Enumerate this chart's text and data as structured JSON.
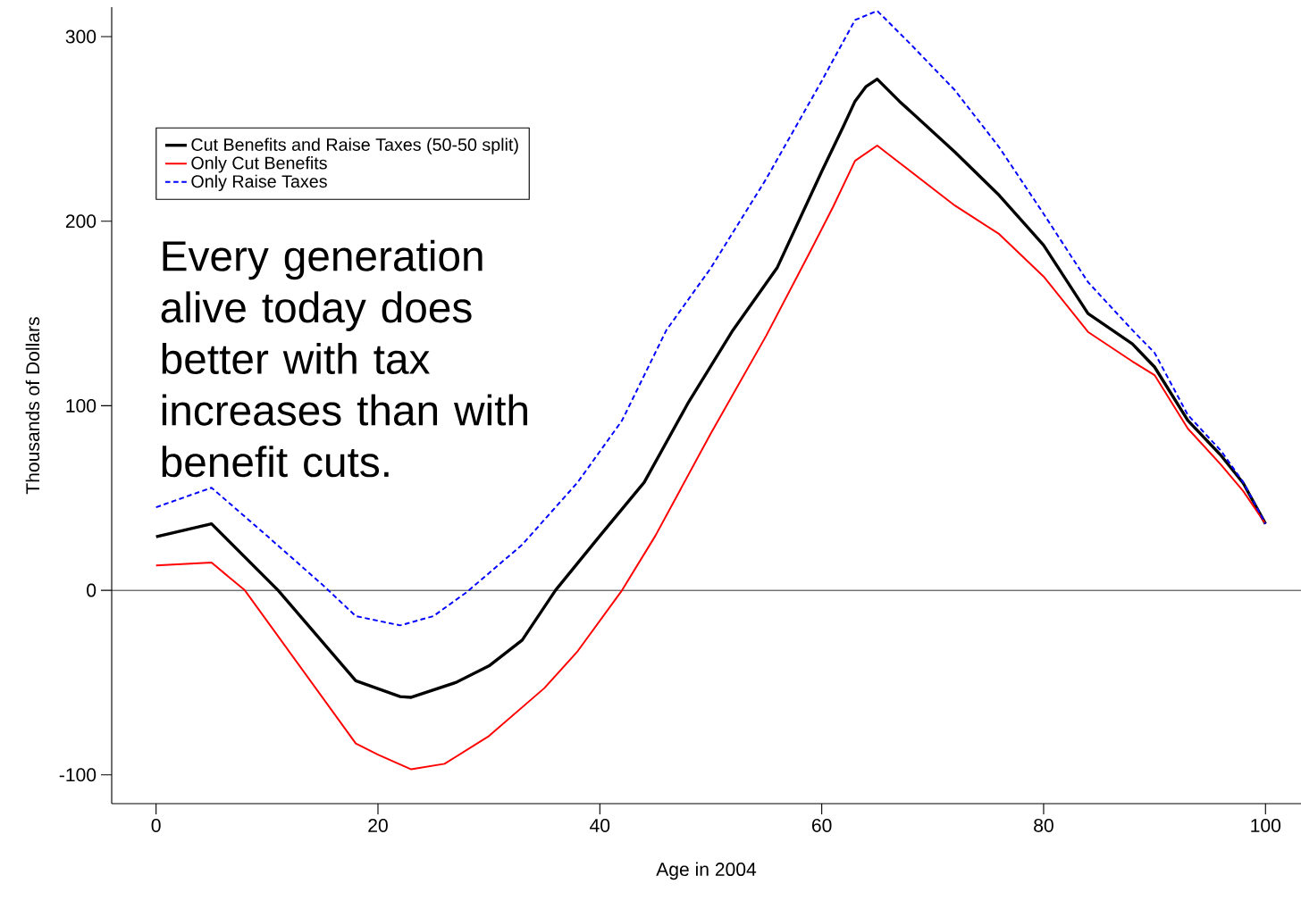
{
  "chart_data": {
    "type": "line",
    "xlabel": "Age in 2004",
    "ylabel": "Thousands of Dollars",
    "xlim": [
      -4,
      103.2
    ],
    "ylim": [
      -115.6,
      316
    ],
    "xticks": [
      0,
      20,
      40,
      60,
      80,
      100
    ],
    "yticks": [
      -100,
      0,
      100,
      200,
      300
    ],
    "legend": "top left",
    "grid": false,
    "ref_lines": [
      {
        "axis": "y",
        "value": 0,
        "color": "#000000"
      }
    ],
    "annotations": [
      "Every generation alive today does better with tax increases than with benefit cuts."
    ],
    "series": [
      {
        "name": "Cut Benefits and Raise Taxes (50-50 split)",
        "color": "#000000",
        "line_style": "solid",
        "x": [
          0,
          5,
          11,
          18,
          22,
          23,
          27,
          30,
          33,
          36,
          40,
          44,
          48,
          52,
          56,
          60,
          62,
          63,
          64,
          65,
          67,
          72,
          76,
          80,
          84,
          88,
          90,
          93,
          96,
          98,
          100
        ],
        "values": [
          29,
          36,
          0,
          -49,
          -57.6,
          -58,
          -50,
          -41,
          -27,
          0,
          29.5,
          58.5,
          102,
          141,
          175,
          227,
          252,
          265,
          273,
          277,
          265,
          237.5,
          214,
          187,
          150,
          133.5,
          121,
          92,
          73,
          58,
          36
        ]
      },
      {
        "name": "Only Cut Benefits",
        "color": "#ff0000",
        "line_style": "solid",
        "x": [
          0,
          5,
          8,
          18,
          20,
          23,
          26,
          30,
          35,
          38,
          42,
          45,
          50,
          55,
          59,
          61,
          63,
          65,
          67,
          72,
          76,
          80,
          84,
          88,
          90,
          93,
          96,
          98,
          100
        ],
        "values": [
          13.5,
          15,
          0,
          -83,
          -89,
          -97,
          -94,
          -79,
          -53,
          -33,
          0,
          29.5,
          85,
          138,
          184,
          207.5,
          232.7,
          241,
          231.7,
          208.5,
          193,
          170,
          140,
          124,
          116.6,
          87.6,
          68,
          53.7,
          36
        ]
      },
      {
        "name": "Only Raise Taxes",
        "color": "#0000ff",
        "line_style": "dashed",
        "x": [
          0,
          5,
          10,
          15,
          18,
          22,
          25,
          28,
          33,
          38,
          42,
          46,
          50,
          55,
          60,
          63,
          65,
          68,
          72,
          76,
          80,
          84,
          88,
          90,
          93,
          96,
          98,
          100
        ],
        "values": [
          45,
          55.6,
          29.5,
          3,
          -14,
          -19,
          -14,
          -1,
          24.7,
          58.5,
          92,
          141,
          174.6,
          223,
          276,
          309,
          314,
          296,
          271,
          240,
          204,
          167,
          141,
          128.7,
          95,
          75.5,
          58.5,
          36
        ]
      }
    ]
  }
}
